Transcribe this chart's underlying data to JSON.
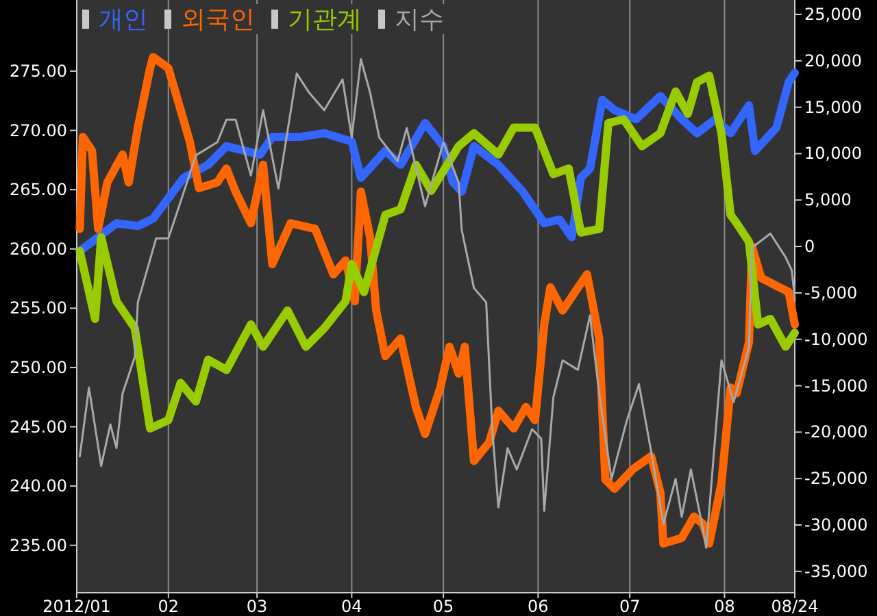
{
  "chart_data": {
    "type": "line",
    "legend": "top left",
    "grid": "x",
    "xlim": [
      "2012-01-02",
      "2012-08-24"
    ],
    "xticks": [
      {
        "value": "2012-01-02",
        "label": "2012/01"
      },
      {
        "value": "2012-02-01",
        "label": "02"
      },
      {
        "value": "2012-03-01",
        "label": "03"
      },
      {
        "value": "2012-04-01",
        "label": "04"
      },
      {
        "value": "2012-05-01",
        "label": "05"
      },
      {
        "value": "2012-06-01",
        "label": "06"
      },
      {
        "value": "2012-07-01",
        "label": "07"
      },
      {
        "value": "2012-08-01",
        "label": "08"
      },
      {
        "value": "2012-08-24",
        "label": "08/24"
      }
    ],
    "ylim": [
      231,
      281
    ],
    "yticks": [
      {
        "value": 235,
        "label": "235.00"
      },
      {
        "value": 240,
        "label": "240.00"
      },
      {
        "value": 245,
        "label": "245.00"
      },
      {
        "value": 250,
        "label": "250.00"
      },
      {
        "value": 255,
        "label": "255.00"
      },
      {
        "value": 260,
        "label": "260.00"
      },
      {
        "value": 265,
        "label": "265.00"
      },
      {
        "value": 270,
        "label": "270.00"
      },
      {
        "value": 275,
        "label": "275.00"
      }
    ],
    "y2lim": [
      -37300,
      26550
    ],
    "y2ticks": [
      {
        "value": -35000,
        "label": "-35,000"
      },
      {
        "value": -30000,
        "label": "-30,000"
      },
      {
        "value": -25000,
        "label": "-25,000"
      },
      {
        "value": -20000,
        "label": "-20,000"
      },
      {
        "value": -15000,
        "label": "-15,000"
      },
      {
        "value": -10000,
        "label": "-10,000"
      },
      {
        "value": -5000,
        "label": "-5,000"
      },
      0,
      {
        "value": 5000,
        "label": "5,000"
      },
      {
        "value": 10000,
        "label": "10,000"
      },
      {
        "value": 15000,
        "label": "15,000"
      },
      {
        "value": 20000,
        "label": "20,000"
      },
      {
        "value": 25000,
        "label": "25,000"
      }
    ],
    "series": [
      {
        "name": "개인",
        "color": "#3366ff",
        "axis": "y2",
        "x": [
          "2012-01-03",
          "2012-01-15",
          "2012-01-22",
          "2012-01-27",
          "2012-02-06",
          "2012-02-14",
          "2012-02-20",
          "2012-03-02",
          "2012-03-06",
          "2012-03-15",
          "2012-03-23",
          "2012-04-01",
          "2012-04-04",
          "2012-04-12",
          "2012-04-17",
          "2012-04-25",
          "2012-05-01",
          "2012-05-04",
          "2012-05-07",
          "2012-05-11",
          "2012-05-19",
          "2012-05-27",
          "2012-06-03",
          "2012-06-08",
          "2012-06-12",
          "2012-06-15",
          "2012-06-18",
          "2012-06-22",
          "2012-06-26",
          "2012-07-03",
          "2012-07-11",
          "2012-07-18",
          "2012-07-23",
          "2012-07-29",
          "2012-08-03",
          "2012-08-09",
          "2012-08-11",
          "2012-08-18",
          "2012-08-22",
          "2012-08-24"
        ],
        "values": [
          -500,
          2500,
          2200,
          3000,
          7400,
          8800,
          10800,
          9900,
          11800,
          11800,
          12200,
          11300,
          7400,
          10300,
          8800,
          13300,
          10800,
          7000,
          5900,
          10800,
          8800,
          5900,
          2500,
          2900,
          1000,
          7400,
          8400,
          15800,
          14700,
          13700,
          16200,
          13700,
          12200,
          13700,
          12200,
          15200,
          10300,
          12800,
          17700,
          18700
        ]
      },
      {
        "name": "외국인",
        "color": "#ff6600",
        "axis": "y2",
        "x": [
          "2012-01-03",
          "2012-01-04",
          "2012-01-07",
          "2012-01-09",
          "2012-01-12",
          "2012-01-17",
          "2012-01-19",
          "2012-01-22",
          "2012-01-26",
          "2012-01-27",
          "2012-02-01",
          "2012-02-05",
          "2012-02-08",
          "2012-02-11",
          "2012-02-17",
          "2012-02-20",
          "2012-02-23",
          "2012-02-28",
          "2012-03-03",
          "2012-03-06",
          "2012-03-12",
          "2012-03-20",
          "2012-03-26",
          "2012-03-30",
          "2012-04-02",
          "2012-04-04",
          "2012-04-07",
          "2012-04-09",
          "2012-04-12",
          "2012-04-17",
          "2012-04-22",
          "2012-04-25",
          "2012-04-30",
          "2012-05-03",
          "2012-05-06",
          "2012-05-08",
          "2012-05-11",
          "2012-05-16",
          "2012-05-19",
          "2012-05-24",
          "2012-05-28",
          "2012-05-31",
          "2012-06-03",
          "2012-06-05",
          "2012-06-09",
          "2012-06-17",
          "2012-06-21",
          "2012-06-23",
          "2012-06-26",
          "2012-07-02",
          "2012-07-08",
          "2012-07-11",
          "2012-07-12",
          "2012-07-18",
          "2012-07-22",
          "2012-07-25",
          "2012-07-27",
          "2012-07-31",
          "2012-08-03",
          "2012-08-05",
          "2012-08-09",
          "2012-08-10",
          "2012-08-13",
          "2012-08-19",
          "2012-08-22",
          "2012-08-24"
        ],
        "values": [
          1900,
          11800,
          10300,
          1900,
          6900,
          9900,
          6900,
          12800,
          19200,
          20400,
          19200,
          14700,
          11300,
          6300,
          6900,
          8400,
          5900,
          2500,
          8800,
          -1900,
          2500,
          1900,
          -3000,
          -1500,
          -5900,
          5900,
          1000,
          -6900,
          -11800,
          -9900,
          -17300,
          -20200,
          -15200,
          -10800,
          -13700,
          -10800,
          -23100,
          -21100,
          -17700,
          -19600,
          -17300,
          -18700,
          -8400,
          -4400,
          -6900,
          -3000,
          -9900,
          -25100,
          -26100,
          -24000,
          -22600,
          -26500,
          -32000,
          -31400,
          -29100,
          -29900,
          -32000,
          -25500,
          -15200,
          -15800,
          -10300,
          0,
          -3400,
          -4400,
          -4900,
          -8400
        ]
      },
      {
        "name": "기관계",
        "color": "#99cc00",
        "axis": "y2",
        "x": [
          "2012-01-03",
          "2012-01-08",
          "2012-01-10",
          "2012-01-15",
          "2012-01-21",
          "2012-01-26",
          "2012-02-01",
          "2012-02-05",
          "2012-02-10",
          "2012-02-14",
          "2012-02-20",
          "2012-02-28",
          "2012-03-03",
          "2012-03-11",
          "2012-03-17",
          "2012-03-23",
          "2012-03-30",
          "2012-04-01",
          "2012-04-05",
          "2012-04-12",
          "2012-04-17",
          "2012-04-22",
          "2012-04-27",
          "2012-05-06",
          "2012-05-11",
          "2012-05-19",
          "2012-05-24",
          "2012-05-31",
          "2012-06-06",
          "2012-06-11",
          "2012-06-15",
          "2012-06-21",
          "2012-06-24",
          "2012-06-29",
          "2012-07-05",
          "2012-07-11",
          "2012-07-16",
          "2012-07-20",
          "2012-07-23",
          "2012-07-27",
          "2012-07-31",
          "2012-08-03",
          "2012-08-05",
          "2012-08-09",
          "2012-08-12",
          "2012-08-16",
          "2012-08-21",
          "2012-08-24"
        ],
        "values": [
          -500,
          -7800,
          1000,
          -5900,
          -8800,
          -19600,
          -18700,
          -14700,
          -16700,
          -12200,
          -13300,
          -8400,
          -10800,
          -6900,
          -10800,
          -8800,
          -5900,
          -1900,
          -4900,
          3400,
          4000,
          8800,
          6000,
          10800,
          12200,
          9900,
          12800,
          12800,
          7800,
          8400,
          1500,
          1900,
          13300,
          13700,
          10800,
          12200,
          16700,
          14300,
          17700,
          18400,
          12200,
          3400,
          2500,
          500,
          -8400,
          -7800,
          -10800,
          -9300
        ]
      },
      {
        "name": "지수",
        "color": "#a8a8a8",
        "axis": "y",
        "x": [
          "2012-01-03",
          "2012-01-06",
          "2012-01-10",
          "2012-01-13",
          "2012-01-15",
          "2012-01-17",
          "2012-01-21",
          "2012-01-22",
          "2012-01-28",
          "2012-02-01",
          "2012-02-05",
          "2012-02-10",
          "2012-02-17",
          "2012-02-20",
          "2012-02-23",
          "2012-02-28",
          "2012-03-03",
          "2012-03-08",
          "2012-03-14",
          "2012-03-18",
          "2012-03-23",
          "2012-03-29",
          "2012-04-01",
          "2012-04-04",
          "2012-04-07",
          "2012-04-10",
          "2012-04-16",
          "2012-04-19",
          "2012-04-25",
          "2012-05-01",
          "2012-05-06",
          "2012-05-07",
          "2012-05-11",
          "2012-05-15",
          "2012-05-17",
          "2012-05-19",
          "2012-05-22",
          "2012-05-25",
          "2012-05-30",
          "2012-06-02",
          "2012-06-03",
          "2012-06-06",
          "2012-06-09",
          "2012-06-14",
          "2012-06-18",
          "2012-06-21",
          "2012-06-25",
          "2012-06-30",
          "2012-07-04",
          "2012-07-08",
          "2012-07-12",
          "2012-07-16",
          "2012-07-18",
          "2012-07-21",
          "2012-07-25",
          "2012-07-26",
          "2012-07-31",
          "2012-08-04",
          "2012-08-09",
          "2012-08-10",
          "2012-08-16",
          "2012-08-21",
          "2012-08-23",
          "2012-08-24"
        ],
        "values": [
          242.5,
          248.3,
          241.7,
          245.2,
          243.2,
          247.8,
          250.9,
          255.5,
          260.9,
          260.9,
          264,
          267.9,
          269,
          270.9,
          270.9,
          266.2,
          271.7,
          265.1,
          274.8,
          273.2,
          271.7,
          274.3,
          269.4,
          276,
          273.2,
          269.4,
          267.4,
          270.2,
          263.6,
          269,
          265.6,
          261.6,
          256.7,
          255.5,
          244.8,
          238.2,
          243.2,
          241.4,
          244.8,
          244,
          237.9,
          247.5,
          250.6,
          249.8,
          254.4,
          247.8,
          240.6,
          245.5,
          248.6,
          242.9,
          236.8,
          240.6,
          237.4,
          241.4,
          236.3,
          234.8,
          250.6,
          247.1,
          251.7,
          260.1,
          261.3,
          259.3,
          258.2,
          255.9
        ]
      }
    ]
  }
}
